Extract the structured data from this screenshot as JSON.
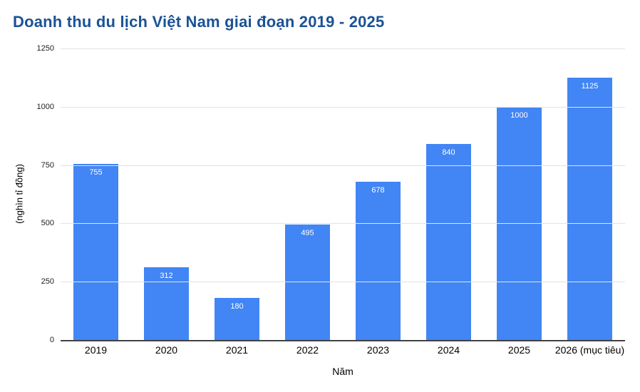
{
  "chart_data": {
    "type": "bar",
    "title": "Doanh thu du lịch Việt Nam giai đoạn 2019 - 2025",
    "xlabel": "Năm",
    "ylabel": "(nghìn tỉ đồng)",
    "categories": [
      "2019",
      "2020",
      "2021",
      "2022",
      "2023",
      "2024",
      "2025",
      "2026 (mục tiêu)"
    ],
    "values": [
      755,
      312,
      180,
      495,
      678,
      840,
      1000,
      1125
    ],
    "ylim": [
      0,
      1250
    ],
    "yticks": [
      0,
      250,
      500,
      750,
      1000,
      1250
    ],
    "grid": true,
    "legend": "none",
    "bar_color": "#4285f4",
    "value_label_color": "#ffffff",
    "title_color": "#1a5296",
    "gridline_color": "#e2e2e2",
    "axis_line_color": "#424242",
    "tick_label_color": "#212121"
  }
}
